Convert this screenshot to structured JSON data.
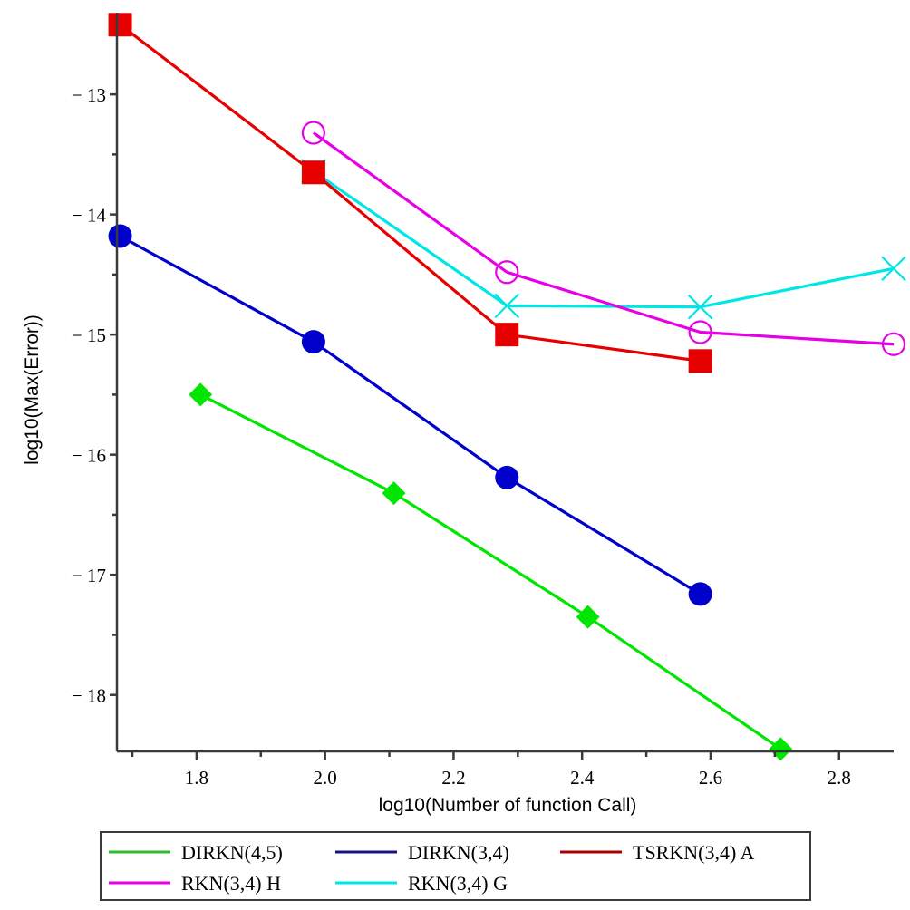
{
  "chart_data": {
    "type": "line",
    "title": "",
    "xlabel": "log10(Number of function Call)",
    "ylabel": "log10(Max(Error))",
    "xlim": [
      1.676,
      2.885
    ],
    "ylim": [
      -18.47,
      -12.32
    ],
    "grid": false,
    "x_ticks": [
      {
        "value": 1.8,
        "label": "1.8"
      },
      {
        "value": 2.0,
        "label": "2.0"
      },
      {
        "value": 2.2,
        "label": "2.2"
      },
      {
        "value": 2.4,
        "label": "2.4"
      },
      {
        "value": 2.6,
        "label": "2.6"
      },
      {
        "value": 2.8,
        "label": "2.8"
      }
    ],
    "x_minor_ticks": [
      1.7,
      1.9,
      2.1,
      2.3,
      2.5,
      2.7
    ],
    "y_ticks": [
      {
        "value": -13,
        "label": "− 13"
      },
      {
        "value": -14,
        "label": "− 14"
      },
      {
        "value": -15,
        "label": "− 15"
      },
      {
        "value": -16,
        "label": "− 16"
      },
      {
        "value": -17,
        "label": "− 17"
      },
      {
        "value": -18,
        "label": "− 18"
      }
    ],
    "y_minor_ticks": [
      -13.5,
      -14.5,
      -15.5,
      -16.5,
      -17.5
    ],
    "legend_position": "bottom",
    "series": [
      {
        "name": "DIRKN(4,5)",
        "color": "#00e600",
        "legend_color": "#33bb33",
        "marker": "diamond",
        "x": [
          1.806,
          2.107,
          2.409,
          2.709
        ],
        "y": [
          -15.5,
          -16.32,
          -17.35,
          -18.45
        ]
      },
      {
        "name": "DIRKN(3,4)",
        "color": "#0000cc",
        "legend_color": "#141480",
        "marker": "circle-filled",
        "x": [
          1.681,
          1.982,
          2.283,
          2.584
        ],
        "y": [
          -14.18,
          -15.06,
          -16.19,
          -17.16
        ]
      },
      {
        "name": "TSRKN(3,4) A",
        "color": "#e60000",
        "legend_color": "#a80000",
        "marker": "square",
        "x": [
          1.681,
          1.982,
          2.283,
          2.584
        ],
        "y": [
          -12.42,
          -13.65,
          -15.0,
          -15.22
        ]
      },
      {
        "name": "RKN(3,4) H",
        "color": "#e600e6",
        "legend_color": "#e600e6",
        "marker": "circle-open",
        "x": [
          1.982,
          2.283,
          2.584,
          2.885
        ],
        "y": [
          -13.32,
          -14.48,
          -14.98,
          -15.08
        ]
      },
      {
        "name": "RKN(3,4) G",
        "color": "#00e6e6",
        "legend_color": "#00e6e6",
        "marker": "cross",
        "x": [
          1.982,
          2.283,
          2.584,
          2.885
        ],
        "y": [
          -13.64,
          -14.76,
          -14.77,
          -14.45
        ]
      }
    ],
    "draw_order": [
      0,
      1,
      4,
      3,
      2
    ]
  }
}
